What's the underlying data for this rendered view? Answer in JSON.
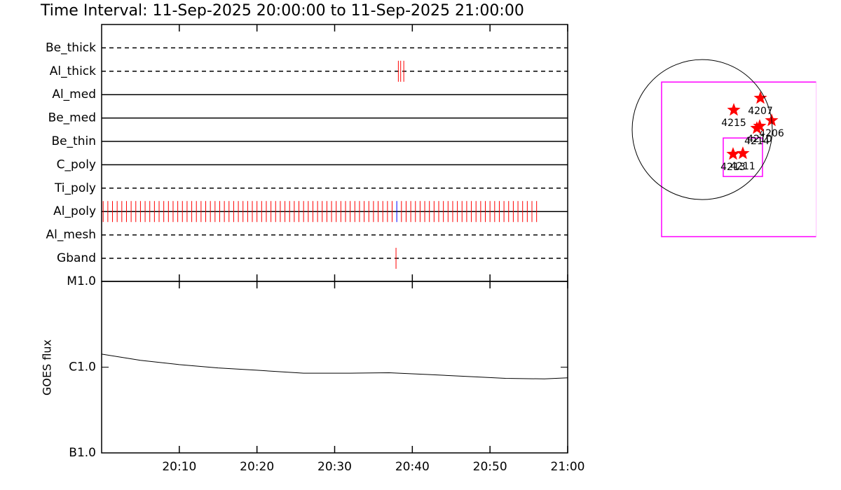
{
  "chart_data": [
    {
      "type": "timeline",
      "title": "Time Interval: 11-Sep-2025 20:00:00 to 11-Sep-2025 21:00:00",
      "categories": [
        "Be_thick",
        "Al_thick",
        "Al_med",
        "Be_med",
        "Be_thin",
        "C_poly",
        "Ti_poly",
        "Al_poly",
        "Al_mesh",
        "Gband"
      ],
      "line_styles": [
        "dashed",
        "dashed",
        "solid",
        "solid",
        "solid",
        "solid",
        "dashed",
        "solid",
        "dashed",
        "dashed"
      ],
      "xlim": [
        0,
        60
      ],
      "events": [
        {
          "row": 1,
          "color": "#ff0000",
          "x": [
            38.2,
            38.5,
            38.9
          ]
        },
        {
          "row": 7,
          "color": "#ff0000",
          "x": [
            0.2,
            0.8,
            1.4,
            2.0,
            2.6,
            3.2,
            3.8,
            4.4,
            5.0,
            5.6,
            6.2,
            6.8,
            7.4,
            8.0,
            8.6,
            9.2,
            9.8,
            10.4,
            11.0,
            11.6,
            12.2,
            12.8,
            13.4,
            14.0,
            14.6,
            15.2,
            15.8,
            16.4,
            17.0,
            17.6,
            18.2,
            18.8,
            19.4,
            20.0,
            20.6,
            21.2,
            21.8,
            22.4,
            23.0,
            23.6,
            24.2,
            24.8,
            25.4,
            26.0,
            26.6,
            27.2,
            27.8,
            28.4,
            29.0,
            29.6,
            30.2,
            30.8,
            31.4,
            32.0,
            32.6,
            33.2,
            33.8,
            34.4,
            35.0,
            35.6,
            36.2,
            36.8,
            37.4,
            38.6,
            39.2,
            39.8,
            40.4,
            41.0,
            41.6,
            42.2,
            42.8,
            43.4,
            44.0,
            44.6,
            45.2,
            45.8,
            46.4,
            47.0,
            47.6,
            48.2,
            48.8,
            49.4,
            50.0,
            50.6,
            51.2,
            51.8,
            52.4,
            53.0,
            53.6,
            54.2,
            54.8,
            55.4,
            56.0
          ]
        },
        {
          "row": 7,
          "color": "#0000ff",
          "x": [
            38.0
          ]
        },
        {
          "row": 9,
          "color": "#ff0000",
          "x": [
            37.9
          ]
        }
      ]
    },
    {
      "type": "line",
      "ylabel": "GOES flux",
      "log_scale": true,
      "color": "#000000",
      "xlim": [
        0,
        60
      ],
      "xticks": [
        {
          "value": 10,
          "label": "20:10"
        },
        {
          "value": 20,
          "label": "20:20"
        },
        {
          "value": 30,
          "label": "20:30"
        },
        {
          "value": 40,
          "label": "20:40"
        },
        {
          "value": 50,
          "label": "20:50"
        },
        {
          "value": 60,
          "label": "21:00"
        }
      ],
      "ylim": [
        1e-07,
        1e-05
      ],
      "yticks": [
        {
          "value": 1e-07,
          "label": "B1.0"
        },
        {
          "value": 1e-06,
          "label": "C1.0"
        },
        {
          "value": 1e-05,
          "label": "M1.0"
        }
      ],
      "x": [
        0,
        5,
        10,
        15,
        20,
        26,
        32,
        37,
        42,
        47,
        52,
        57,
        60
      ],
      "values": [
        1.42e-06,
        1.2e-06,
        1.07e-06,
        9.8e-07,
        9.2e-07,
        8.5e-07,
        8.5e-07,
        8.6e-07,
        8.2e-07,
        7.8e-07,
        7.4e-07,
        7.3e-07,
        7.5e-07
      ]
    },
    {
      "type": "scatter",
      "xlim": [
        -1159,
        1549
      ],
      "ylim": [
        -1520,
        1190
      ],
      "disk_radius": 950,
      "box_color": "#ff00ff",
      "boxes": [
        {
          "x": [
            -551,
            1549
          ],
          "y": [
            -1454,
            646
          ]
        },
        {
          "x": [
            285,
            817
          ],
          "y": [
            -637,
            -114
          ]
        }
      ],
      "color": "#ff0000",
      "labels": [
        "4207",
        "4215",
        "4206",
        "4214",
        "4210",
        "4211",
        "4213"
      ],
      "x": [
        789,
        428,
        941,
        741,
        779,
        551,
        418
      ],
      "values": [
        428,
        266,
        124,
        19,
        48,
        -323,
        -333
      ]
    }
  ]
}
